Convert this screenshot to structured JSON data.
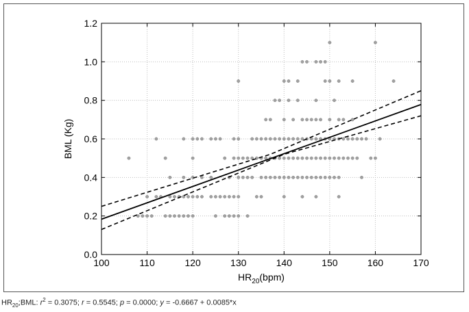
{
  "chart_data": {
    "type": "scatter",
    "xlabel": "HR",
    "xlabel_sub": "20",
    "xlabel_unit": "(bpm)",
    "ylabel": "BML (Kg)",
    "xlim": [
      100,
      170
    ],
    "ylim": [
      0.0,
      1.2
    ],
    "x_ticks": [
      100,
      110,
      120,
      130,
      140,
      150,
      160,
      170
    ],
    "y_ticks": [
      0.0,
      0.2,
      0.4,
      0.6,
      0.8,
      1.0,
      1.2
    ],
    "y_tick_labels": [
      "0.0",
      "0.2",
      "0.4",
      "0.6",
      "0.8",
      "1.0",
      "1.2"
    ],
    "grid": true,
    "point_color": "#a0a0a0",
    "regression": {
      "intercept": -0.6667,
      "slope": 0.0085,
      "color": "#000000"
    },
    "confidence_band": {
      "upper": [
        [
          100,
          0.25
        ],
        [
          137,
          0.52
        ],
        [
          170,
          0.85
        ]
      ],
      "lower": [
        [
          100,
          0.13
        ],
        [
          140,
          0.52
        ],
        [
          170,
          0.72
        ]
      ]
    },
    "points": [
      [
        106,
        0.5
      ],
      [
        108,
        0.2
      ],
      [
        109,
        0.2
      ],
      [
        110,
        0.3
      ],
      [
        110,
        0.2
      ],
      [
        111,
        0.2
      ],
      [
        112,
        0.6
      ],
      [
        112,
        0.3
      ],
      [
        113,
        0.3
      ],
      [
        114,
        0.5
      ],
      [
        114,
        0.2
      ],
      [
        115,
        0.4
      ],
      [
        115,
        0.3
      ],
      [
        115,
        0.2
      ],
      [
        116,
        0.3
      ],
      [
        116,
        0.2
      ],
      [
        117,
        0.3
      ],
      [
        117,
        0.2
      ],
      [
        118,
        0.6
      ],
      [
        118,
        0.4
      ],
      [
        118,
        0.3
      ],
      [
        118,
        0.2
      ],
      [
        119,
        0.3
      ],
      [
        119,
        0.2
      ],
      [
        120,
        0.6
      ],
      [
        120,
        0.5
      ],
      [
        120,
        0.4
      ],
      [
        120,
        0.3
      ],
      [
        120,
        0.2
      ],
      [
        121,
        0.3
      ],
      [
        121,
        0.6
      ],
      [
        122,
        0.6
      ],
      [
        122,
        0.4
      ],
      [
        122,
        0.3
      ],
      [
        124,
        0.6
      ],
      [
        124,
        0.4
      ],
      [
        124,
        0.3
      ],
      [
        125,
        0.6
      ],
      [
        125,
        0.3
      ],
      [
        125,
        0.2
      ],
      [
        126,
        0.6
      ],
      [
        126,
        0.3
      ],
      [
        127,
        0.5
      ],
      [
        127,
        0.3
      ],
      [
        127,
        0.2
      ],
      [
        128,
        0.4
      ],
      [
        128,
        0.3
      ],
      [
        128,
        0.2
      ],
      [
        129,
        0.6
      ],
      [
        129,
        0.5
      ],
      [
        129,
        0.3
      ],
      [
        129,
        0.2
      ],
      [
        130,
        0.9
      ],
      [
        130,
        0.6
      ],
      [
        130,
        0.5
      ],
      [
        130,
        0.4
      ],
      [
        130,
        0.3
      ],
      [
        130,
        0.2
      ],
      [
        131,
        0.5
      ],
      [
        131,
        0.4
      ],
      [
        132,
        0.5
      ],
      [
        132,
        0.4
      ],
      [
        132,
        0.2
      ],
      [
        133,
        0.6
      ],
      [
        133,
        0.5
      ],
      [
        133,
        0.4
      ],
      [
        134,
        0.6
      ],
      [
        134,
        0.5
      ],
      [
        134,
        0.3
      ],
      [
        135,
        0.6
      ],
      [
        135,
        0.5
      ],
      [
        135,
        0.4
      ],
      [
        135,
        0.3
      ],
      [
        136,
        0.7
      ],
      [
        136,
        0.6
      ],
      [
        136,
        0.5
      ],
      [
        136,
        0.4
      ],
      [
        137,
        0.7
      ],
      [
        137,
        0.6
      ],
      [
        137,
        0.5
      ],
      [
        137,
        0.4
      ],
      [
        138,
        0.8
      ],
      [
        138,
        0.6
      ],
      [
        138,
        0.5
      ],
      [
        138,
        0.4
      ],
      [
        139,
        0.8
      ],
      [
        139,
        0.6
      ],
      [
        139,
        0.5
      ],
      [
        139,
        0.4
      ],
      [
        140,
        0.9
      ],
      [
        140,
        0.7
      ],
      [
        140,
        0.6
      ],
      [
        140,
        0.5
      ],
      [
        140,
        0.4
      ],
      [
        140,
        0.3
      ],
      [
        141,
        0.9
      ],
      [
        141,
        0.8
      ],
      [
        141,
        0.6
      ],
      [
        141,
        0.5
      ],
      [
        141,
        0.4
      ],
      [
        142,
        0.7
      ],
      [
        142,
        0.6
      ],
      [
        142,
        0.5
      ],
      [
        142,
        0.4
      ],
      [
        143,
        0.9
      ],
      [
        143,
        0.8
      ],
      [
        143,
        0.6
      ],
      [
        143,
        0.5
      ],
      [
        143,
        0.4
      ],
      [
        144,
        1.0
      ],
      [
        144,
        0.7
      ],
      [
        144,
        0.6
      ],
      [
        144,
        0.5
      ],
      [
        144,
        0.4
      ],
      [
        144,
        0.3
      ],
      [
        145,
        1.0
      ],
      [
        145,
        0.7
      ],
      [
        145,
        0.6
      ],
      [
        145,
        0.5
      ],
      [
        145,
        0.4
      ],
      [
        146,
        0.7
      ],
      [
        146,
        0.6
      ],
      [
        146,
        0.5
      ],
      [
        146,
        0.4
      ],
      [
        147,
        1.0
      ],
      [
        147,
        0.8
      ],
      [
        147,
        0.7
      ],
      [
        147,
        0.6
      ],
      [
        147,
        0.5
      ],
      [
        147,
        0.4
      ],
      [
        147,
        0.3
      ],
      [
        148,
        1.0
      ],
      [
        148,
        0.7
      ],
      [
        148,
        0.6
      ],
      [
        148,
        0.5
      ],
      [
        148,
        0.4
      ],
      [
        149,
        1.0
      ],
      [
        149,
        0.9
      ],
      [
        149,
        0.6
      ],
      [
        149,
        0.5
      ],
      [
        149,
        0.4
      ],
      [
        150,
        1.1
      ],
      [
        150,
        0.9
      ],
      [
        150,
        0.7
      ],
      [
        150,
        0.6
      ],
      [
        150,
        0.5
      ],
      [
        150,
        0.4
      ],
      [
        151,
        0.8
      ],
      [
        151,
        0.6
      ],
      [
        151,
        0.5
      ],
      [
        151,
        0.4
      ],
      [
        152,
        0.9
      ],
      [
        152,
        0.7
      ],
      [
        152,
        0.6
      ],
      [
        152,
        0.5
      ],
      [
        152,
        0.4
      ],
      [
        152,
        0.3
      ],
      [
        153,
        0.7
      ],
      [
        153,
        0.6
      ],
      [
        153,
        0.5
      ],
      [
        154,
        0.6
      ],
      [
        154,
        0.5
      ],
      [
        155,
        0.9
      ],
      [
        155,
        0.7
      ],
      [
        155,
        0.6
      ],
      [
        155,
        0.5
      ],
      [
        156,
        0.6
      ],
      [
        156,
        0.5
      ],
      [
        157,
        0.6
      ],
      [
        157,
        0.4
      ],
      [
        158,
        0.6
      ],
      [
        159,
        0.5
      ],
      [
        160,
        1.1
      ],
      [
        160,
        0.5
      ],
      [
        161,
        0.6
      ],
      [
        164,
        0.9
      ]
    ]
  },
  "caption": {
    "hr_label": "HR",
    "hr_sub": "20",
    "colon_bml": ";BML: ",
    "r2_symbol": "r",
    "r2_sup": "2",
    "r2_value": " = 0.3075; ",
    "r_symbol": "r",
    "r_value": " = 0.5545; ",
    "p_symbol": "p",
    "p_value": " = 0.0000; ",
    "y_symbol": "y",
    "equation": " = -0.6667 + 0.0085*x"
  }
}
